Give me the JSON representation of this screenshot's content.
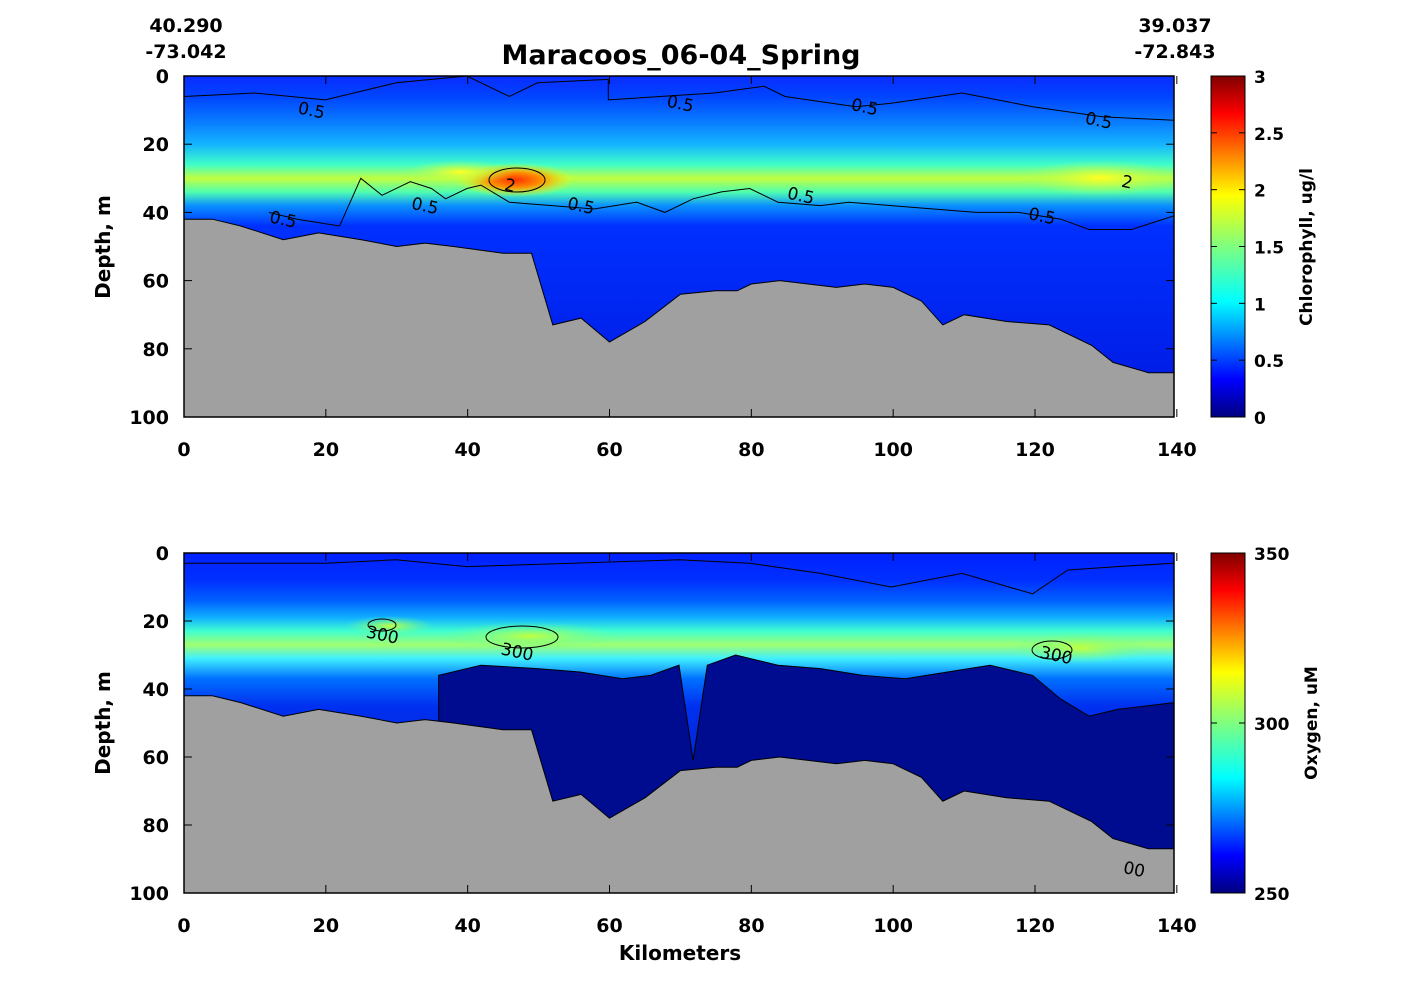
{
  "title": "Maracoos_06-04_Spring",
  "corner_left": {
    "lat": "40.290",
    "lon": "-73.042"
  },
  "corner_right": {
    "lat": "39.037",
    "lon": "-72.843"
  },
  "xlabel": "Kilometers",
  "colors": {
    "seafloor": "#a0a0a0",
    "jet": [
      "#00007f",
      "#0000ff",
      "#007fff",
      "#00ffff",
      "#7fff7f",
      "#ffff00",
      "#ff7f00",
      "#ff0000",
      "#7f0000"
    ]
  },
  "chart_data": [
    {
      "type": "heatmap",
      "variable": "Chlorophyll",
      "ylabel": "Depth, m",
      "colorbar_label": "Chlorophyll, ug/l",
      "xlim": [
        0,
        140
      ],
      "ylim": [
        100,
        0
      ],
      "x_ticks": [
        "0",
        "20",
        "40",
        "60",
        "80",
        "100",
        "120",
        "140"
      ],
      "y_ticks": [
        "0",
        "20",
        "40",
        "60",
        "80",
        "100"
      ],
      "clim": [
        0,
        3
      ],
      "colorbar_ticks": [
        "0",
        "0.5",
        "1",
        "1.5",
        "2",
        "2.5",
        "3"
      ],
      "contour_labels": [
        {
          "text": "0.5",
          "x": 18,
          "y": 10
        },
        {
          "text": "0.5",
          "x": 70,
          "y": 8
        },
        {
          "text": "0.5",
          "x": 96,
          "y": 9
        },
        {
          "text": "0.5",
          "x": 129,
          "y": 13
        },
        {
          "text": "2",
          "x": 46,
          "y": 32
        },
        {
          "text": "0.5",
          "x": 34,
          "y": 38
        },
        {
          "text": "0.5",
          "x": 56,
          "y": 38
        },
        {
          "text": "0.5",
          "x": 87,
          "y": 35
        },
        {
          "text": "0.5",
          "x": 121,
          "y": 41
        },
        {
          "text": "0.5",
          "x": 14,
          "y": 42
        },
        {
          "text": "2",
          "x": 133,
          "y": 31
        }
      ],
      "seafloor_depth": [
        [
          0,
          42
        ],
        [
          4,
          42
        ],
        [
          8,
          44
        ],
        [
          14,
          48
        ],
        [
          19,
          46
        ],
        [
          25,
          48
        ],
        [
          30,
          50
        ],
        [
          34,
          49
        ],
        [
          38,
          50
        ],
        [
          45,
          52
        ],
        [
          49,
          52
        ],
        [
          52,
          73
        ],
        [
          56,
          71
        ],
        [
          60,
          78
        ],
        [
          65,
          72
        ],
        [
          70,
          64
        ],
        [
          75,
          63
        ],
        [
          78,
          63
        ],
        [
          80,
          61
        ],
        [
          84,
          60
        ],
        [
          88,
          61
        ],
        [
          92,
          62
        ],
        [
          96,
          61
        ],
        [
          100,
          62
        ],
        [
          104,
          66
        ],
        [
          107,
          73
        ],
        [
          110,
          70
        ],
        [
          116,
          72
        ],
        [
          122,
          73
        ],
        [
          128,
          79
        ],
        [
          131,
          84
        ],
        [
          136,
          87
        ],
        [
          140,
          87
        ],
        [
          141,
          100
        ]
      ]
    },
    {
      "type": "heatmap",
      "variable": "Oxygen",
      "ylabel": "Depth, m",
      "colorbar_label": "Oxygen, uM",
      "xlim": [
        0,
        140
      ],
      "ylim": [
        100,
        0
      ],
      "x_ticks": [
        "0",
        "20",
        "40",
        "60",
        "80",
        "100",
        "120",
        "140"
      ],
      "y_ticks": [
        "0",
        "20",
        "40",
        "60",
        "80",
        "100"
      ],
      "clim": [
        250,
        350
      ],
      "colorbar_ticks": [
        "250",
        "300",
        "350"
      ],
      "contour_labels": [
        {
          "text": "300",
          "x": 28,
          "y": 24
        },
        {
          "text": "300",
          "x": 47,
          "y": 29
        },
        {
          "text": "300",
          "x": 123,
          "y": 30
        },
        {
          "text": "00",
          "x": 134,
          "y": 93
        }
      ],
      "seafloor_depth": [
        [
          0,
          42
        ],
        [
          4,
          42
        ],
        [
          8,
          44
        ],
        [
          14,
          48
        ],
        [
          19,
          46
        ],
        [
          25,
          48
        ],
        [
          30,
          50
        ],
        [
          34,
          49
        ],
        [
          38,
          50
        ],
        [
          45,
          52
        ],
        [
          49,
          52
        ],
        [
          52,
          73
        ],
        [
          56,
          71
        ],
        [
          60,
          78
        ],
        [
          65,
          72
        ],
        [
          70,
          64
        ],
        [
          75,
          63
        ],
        [
          78,
          63
        ],
        [
          80,
          61
        ],
        [
          84,
          60
        ],
        [
          88,
          61
        ],
        [
          92,
          62
        ],
        [
          96,
          61
        ],
        [
          100,
          62
        ],
        [
          104,
          66
        ],
        [
          107,
          73
        ],
        [
          110,
          70
        ],
        [
          116,
          72
        ],
        [
          122,
          73
        ],
        [
          128,
          79
        ],
        [
          131,
          84
        ],
        [
          136,
          87
        ],
        [
          140,
          87
        ],
        [
          141,
          100
        ]
      ]
    }
  ]
}
